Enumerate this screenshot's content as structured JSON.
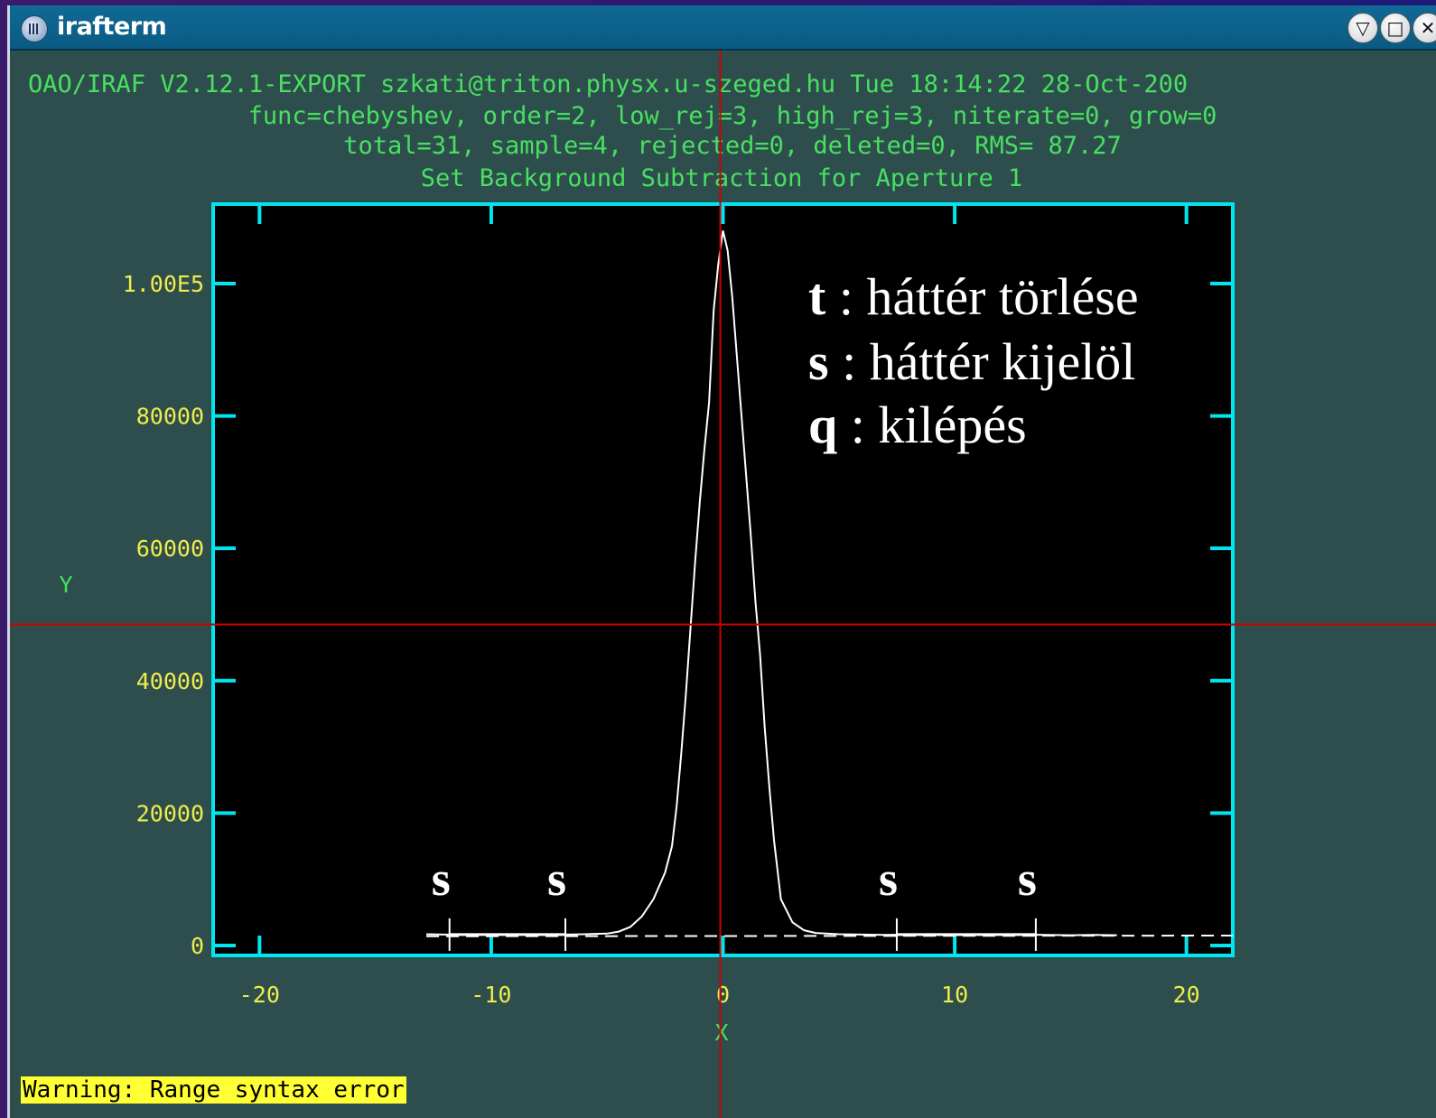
{
  "window": {
    "title": "irafterm",
    "buttons": [
      "minimize-to-tray",
      "maximize",
      "close"
    ]
  },
  "header": {
    "line1": "OAO/IRAF V2.12.1-EXPORT szkati@triton.physx.u-szeged.hu Tue 18:14:22 28-Oct-200",
    "line2": "func=chebyshev, order=2, low_rej=3, high_rej=3, niterate=0, grow=0",
    "line3": "total=31, sample=4, rejected=0, deleted=0, RMS=  87.27",
    "line4": "Set Background Subtraction for Aperture 1"
  },
  "legend": {
    "t": {
      "key": "t",
      "text": " : háttér törlése"
    },
    "s": {
      "key": "s",
      "text": " : háttér kijelöl"
    },
    "q": {
      "key": "q",
      "text": " : kilépés"
    }
  },
  "sample_marker_label": "s",
  "status": {
    "warning": "Warning: Range syntax error"
  },
  "colors": {
    "axes": "#00e5ee",
    "ticks_text": "#f0ec4a",
    "header_text": "#48e060",
    "cursor": "#cc0000",
    "curve": "#ffffff",
    "warning_bg": "#ffff33"
  },
  "chart_data": {
    "type": "line",
    "xlabel": "X",
    "ylabel": "Y",
    "xlim": [
      -22,
      22
    ],
    "ylim": [
      -1500,
      112000
    ],
    "x_ticks": [
      -20,
      -10,
      0,
      10,
      20
    ],
    "x_tick_labels": [
      "-20",
      "-10",
      "0",
      "10",
      "20"
    ],
    "y_ticks": [
      0,
      20000,
      40000,
      60000,
      80000,
      100000
    ],
    "y_tick_labels": [
      "0",
      "20000",
      "40000",
      "60000",
      "80000",
      "1.00E5"
    ],
    "series": [
      {
        "x": [
          -12.8,
          -12,
          -11,
          -10,
          -9,
          -8,
          -7,
          -6,
          -5,
          -4.5,
          -4,
          -3.5,
          -3,
          -2.5,
          -2.2,
          -2,
          -1.8,
          -1.6,
          -1.4,
          -1.2,
          -1,
          -0.8,
          -0.6,
          -0.4,
          -0.2,
          0,
          0.2,
          0.4,
          0.6,
          0.8,
          1,
          1.2,
          1.4,
          1.6,
          1.8,
          2,
          2.2,
          2.5,
          3,
          3.5,
          4,
          5,
          6,
          7,
          8,
          9,
          10,
          11,
          12,
          13,
          14,
          15,
          16,
          17
        ],
        "y": [
          1700,
          1650,
          1600,
          1650,
          1650,
          1600,
          1650,
          1700,
          1800,
          2100,
          2800,
          4400,
          7000,
          11000,
          15000,
          21000,
          29000,
          38000,
          48000,
          58000,
          67000,
          75000,
          82000,
          96000,
          103000,
          108000,
          105000,
          98000,
          89000,
          80000,
          71000,
          62000,
          52000,
          44000,
          33000,
          24000,
          16000,
          7000,
          3500,
          2300,
          1900,
          1700,
          1650,
          1600,
          1650,
          1700,
          1600,
          1650,
          1700,
          1650,
          1600,
          1550,
          1600,
          1550
        ]
      }
    ],
    "fit_line": {
      "x": [
        -12.8,
        22
      ],
      "y": [
        1400,
        1500
      ]
    },
    "sample_regions": [
      [
        -11.8,
        -6.8
      ],
      [
        7.5,
        13.5
      ]
    ],
    "cursor": {
      "x": 0,
      "y": 48500
    }
  }
}
